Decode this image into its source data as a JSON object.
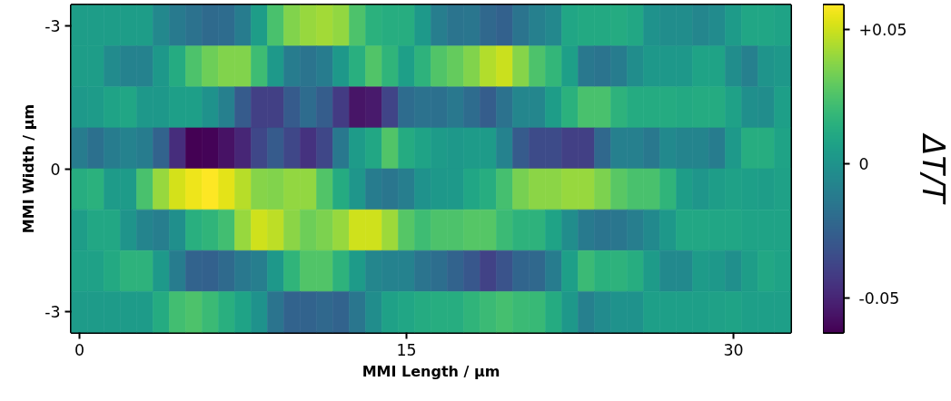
{
  "chart_data": {
    "type": "heatmap",
    "xlabel": "MMI Length / µm",
    "ylabel": "MMI Width / µm",
    "clabel": "ΔT/T",
    "categories": [
      "0",
      null,
      null,
      null,
      null,
      null,
      null,
      null,
      null,
      null,
      null,
      null,
      null,
      null,
      null,
      null,
      null,
      null,
      null,
      null,
      "15",
      null,
      null,
      null,
      null,
      null,
      null,
      null,
      null,
      null,
      null,
      null,
      null,
      null,
      null,
      null,
      null,
      null,
      null,
      null,
      "30",
      null,
      null,
      null
    ],
    "y_categories": [
      "-3",
      null,
      null,
      null,
      null,
      null,
      null,
      "-3"
    ],
    "annotations": [
      "0"
    ],
    "cells": [
      [
        0.005,
        0.005,
        0.005,
        0.005,
        0.005,
        -0.006,
        -0.013,
        -0.017,
        -0.021,
        -0.02,
        -0.012,
        0.005,
        0.024,
        0.036,
        0.04,
        0.042,
        0.039,
        0.025,
        0.015,
        0.013,
        0.013,
        0.003,
        -0.011,
        -0.016,
        -0.015,
        -0.022,
        -0.025,
        -0.016,
        -0.01,
        -0.006,
        0.009,
        0.011,
        0.011,
        0.012,
        0.01,
        -0.001,
        -0.003,
        -0.003,
        -0.007,
        -0.004,
        0.004,
        0.009,
        0.009,
        0.008
      ],
      [
        0.005,
        0.005,
        -0.004,
        -0.009,
        -0.009,
        0.002,
        0.012,
        0.025,
        0.032,
        0.036,
        0.036,
        0.021,
        0.003,
        -0.012,
        -0.016,
        -0.012,
        0.002,
        0.014,
        0.026,
        0.017,
        0.006,
        0.016,
        0.026,
        0.03,
        0.036,
        0.045,
        0.049,
        0.037,
        0.025,
        0.018,
        0.006,
        -0.014,
        -0.016,
        -0.012,
        -0.003,
        0.002,
        0.002,
        0.002,
        0.008,
        0.008,
        -0.003,
        -0.01,
        0.0,
        0.002
      ],
      [
        0.003,
        0.004,
        0.008,
        0.009,
        0.002,
        0.002,
        0.006,
        0.006,
        -0.001,
        -0.01,
        -0.028,
        -0.04,
        -0.04,
        -0.028,
        -0.02,
        -0.027,
        -0.042,
        -0.056,
        -0.054,
        -0.038,
        -0.02,
        -0.017,
        -0.018,
        -0.014,
        -0.02,
        -0.027,
        -0.017,
        -0.007,
        -0.007,
        0.005,
        0.015,
        0.024,
        0.024,
        0.016,
        0.012,
        0.012,
        0.012,
        0.011,
        0.012,
        0.012,
        0.007,
        -0.002,
        -0.003,
        0.006
      ],
      [
        -0.012,
        -0.018,
        -0.012,
        -0.009,
        -0.012,
        -0.024,
        -0.047,
        -0.063,
        -0.062,
        -0.057,
        -0.05,
        -0.037,
        -0.028,
        -0.037,
        -0.045,
        -0.037,
        -0.014,
        0.004,
        0.01,
        0.026,
        0.012,
        0.008,
        0.004,
        0.002,
        0.004,
        0.004,
        -0.009,
        -0.028,
        -0.035,
        -0.035,
        -0.04,
        -0.04,
        -0.022,
        -0.01,
        -0.01,
        -0.014,
        -0.005,
        -0.008,
        -0.008,
        -0.012,
        0.003,
        0.013,
        0.013,
        0.008
      ],
      [
        0.013,
        0.015,
        0.004,
        0.004,
        0.024,
        0.04,
        0.051,
        0.056,
        0.059,
        0.054,
        0.046,
        0.037,
        0.036,
        0.039,
        0.039,
        0.026,
        0.012,
        0.001,
        -0.012,
        -0.015,
        -0.011,
        -0.001,
        0.002,
        0.003,
        0.009,
        0.013,
        0.023,
        0.034,
        0.038,
        0.038,
        0.04,
        0.04,
        0.035,
        0.028,
        0.024,
        0.024,
        0.017,
        0.005,
        0.001,
        0.005,
        0.007,
        0.006,
        0.005,
        0.007
      ],
      [
        0.005,
        0.01,
        0.01,
        0.0,
        -0.008,
        -0.011,
        -0.002,
        0.014,
        0.017,
        0.022,
        0.04,
        0.05,
        0.047,
        0.038,
        0.032,
        0.035,
        0.04,
        0.05,
        0.05,
        0.041,
        0.027,
        0.021,
        0.025,
        0.025,
        0.027,
        0.027,
        0.02,
        0.016,
        0.016,
        0.008,
        -0.003,
        -0.013,
        -0.016,
        -0.015,
        -0.011,
        -0.005,
        0.002,
        0.01,
        0.01,
        0.009,
        0.009,
        0.008,
        0.008,
        0.008
      ],
      [
        0.007,
        0.007,
        0.011,
        0.016,
        0.016,
        0.003,
        -0.012,
        -0.024,
        -0.025,
        -0.021,
        -0.014,
        -0.011,
        0.002,
        0.017,
        0.026,
        0.026,
        0.016,
        0.004,
        -0.007,
        -0.009,
        -0.009,
        -0.016,
        -0.019,
        -0.024,
        -0.03,
        -0.039,
        -0.032,
        -0.023,
        -0.022,
        -0.012,
        0.006,
        0.02,
        0.015,
        0.016,
        0.013,
        0.004,
        -0.005,
        -0.005,
        0.004,
        0.002,
        -0.002,
        0.005,
        0.01,
        0.008
      ],
      [
        0.004,
        0.004,
        0.004,
        0.004,
        0.004,
        0.012,
        0.022,
        0.025,
        0.02,
        0.014,
        0.008,
        -0.001,
        -0.016,
        -0.024,
        -0.024,
        -0.022,
        -0.024,
        -0.015,
        -0.003,
        0.007,
        0.009,
        0.012,
        0.013,
        0.013,
        0.017,
        0.02,
        0.023,
        0.02,
        0.019,
        0.012,
        0.002,
        -0.01,
        -0.004,
        -0.001,
        -0.001,
        0.006,
        0.006,
        0.006,
        0.006,
        0.007,
        0.008,
        0.006,
        0.006,
        0.006
      ]
    ],
    "clim": [
      -0.063,
      0.059
    ],
    "cticks": [
      {
        "value": 0.05,
        "label": "+0.05"
      },
      0,
      -0.05
    ],
    "grid": false
  }
}
